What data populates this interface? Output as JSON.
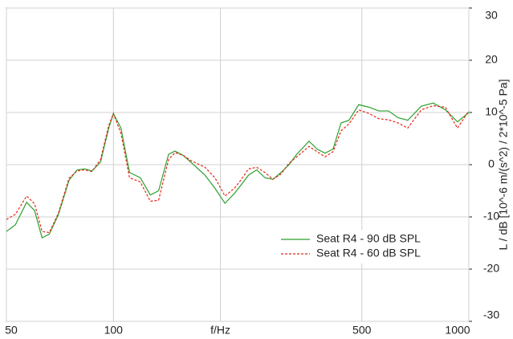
{
  "chart_data": {
    "type": "line",
    "x": [
      50,
      53,
      57,
      60,
      63,
      66,
      70,
      75,
      79,
      83,
      87,
      92,
      97,
      100,
      105,
      111,
      119,
      127,
      134,
      143,
      149,
      157,
      165,
      181,
      193,
      206,
      219,
      228,
      240,
      253,
      267,
      281,
      296,
      312,
      328,
      355,
      374,
      394,
      415,
      437,
      460,
      490,
      524,
      558,
      594,
      632,
      673,
      735,
      794,
      859,
      929,
      1000
    ],
    "series": [
      {
        "name": "Seat R4 - 90 dB SPL",
        "color": "#2ca02c",
        "dash": false,
        "values": [
          -12.8,
          -11.5,
          -7.2,
          -8.8,
          -14,
          -13.3,
          -9.6,
          -3,
          -1,
          -0.8,
          -1.2,
          0.5,
          7,
          9.8,
          7,
          -1.5,
          -2.5,
          -5.8,
          -5,
          2,
          2.6,
          1.8,
          0.5,
          -2,
          -4.5,
          -7.4,
          -5.5,
          -4,
          -2,
          -1,
          -2.5,
          -2.8,
          -1.5,
          0,
          2,
          4.5,
          3,
          2.2,
          3,
          8,
          8.5,
          11.5,
          11,
          10.3,
          10.3,
          9,
          8.5,
          11.2,
          11.8,
          10.5,
          8.2,
          10
        ]
      },
      {
        "name": "Seat R4 - 60 dB SPL",
        "color": "#e8261a",
        "dash": true,
        "values": [
          -10.5,
          -9.5,
          -6,
          -7.5,
          -12.8,
          -13,
          -9.3,
          -2.6,
          -1.2,
          -1,
          -1.3,
          1,
          7.5,
          9.8,
          6,
          -2.5,
          -3.3,
          -7,
          -6.8,
          1,
          2.3,
          1.8,
          0.8,
          -0.5,
          -2.5,
          -6,
          -4.5,
          -3,
          -0.8,
          -0.5,
          -1.5,
          -2.8,
          -1.8,
          0.3,
          1.5,
          3.5,
          2.5,
          1.5,
          2.5,
          6.5,
          7.8,
          10.5,
          9.8,
          8.8,
          8.6,
          8,
          7,
          10.5,
          11.3,
          11,
          7,
          10.3
        ]
      }
    ],
    "xscale": "log",
    "xlim": [
      50,
      1000
    ],
    "xticks": [
      50,
      100,
      {
        "value": 200,
        "label": "f/Hz"
      },
      500,
      1000
    ],
    "ylim": [
      -30,
      30
    ],
    "yticks": [
      -30,
      -20,
      -10,
      0,
      10,
      20,
      30
    ],
    "ylabel": "L / dB [10^-6 m/(s^2) / 2*10^-5 Pa]",
    "grid": true,
    "legend": "lower right"
  }
}
